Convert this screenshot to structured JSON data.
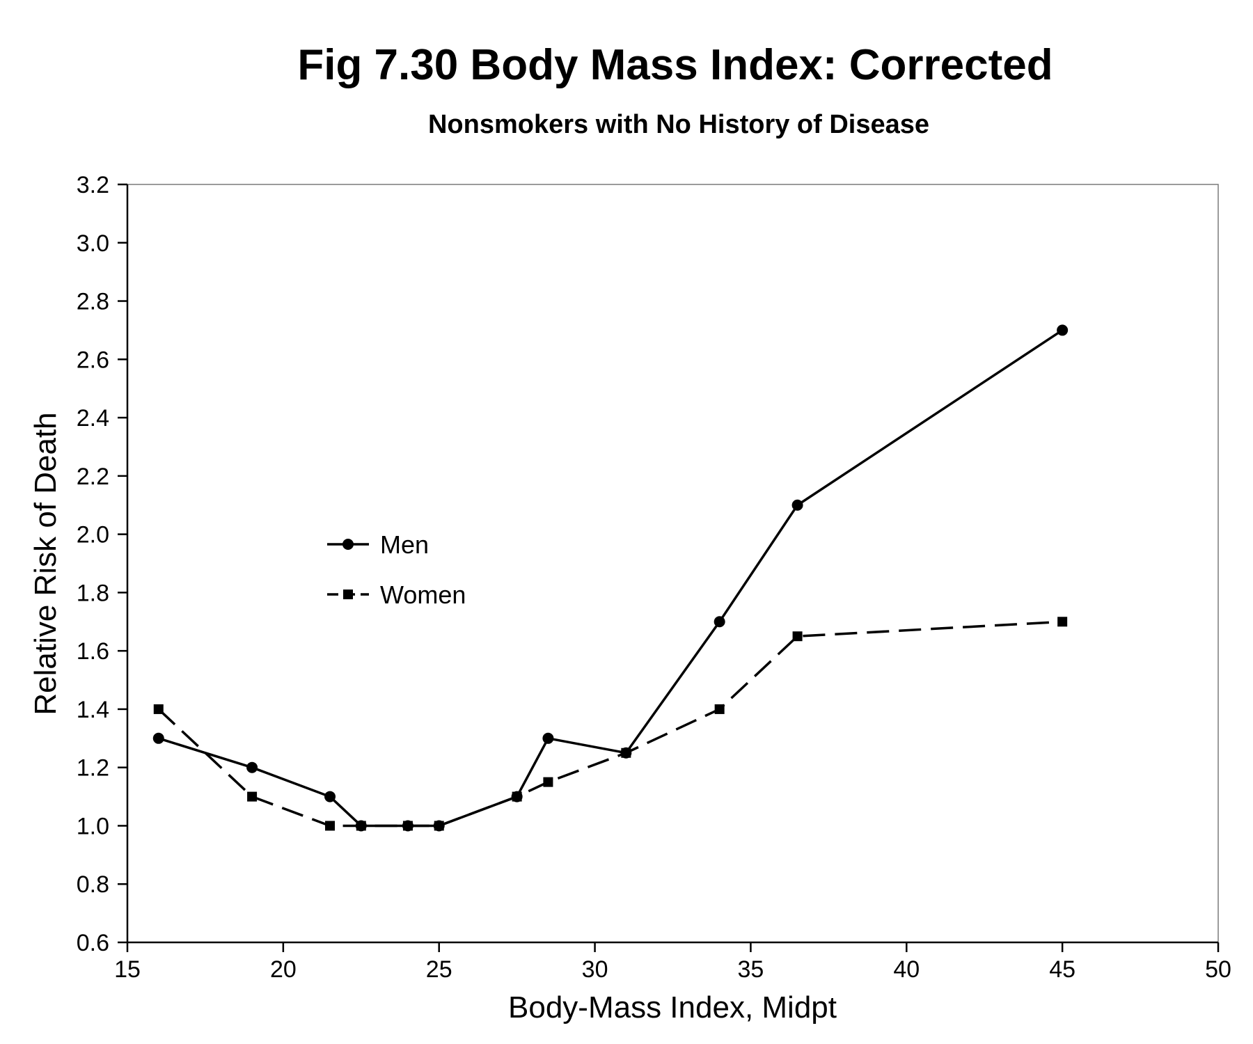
{
  "chart_data": {
    "type": "line",
    "title": "Fig 7.30 Body Mass Index: Corrected",
    "subtitle": "Nonsmokers with No History of Disease",
    "xlabel": "Body-Mass Index, Midpt",
    "ylabel": "Relative Risk of Death",
    "xlim": [
      15,
      50
    ],
    "ylim": [
      0.6,
      3.2
    ],
    "xticks": [
      15,
      20,
      25,
      30,
      35,
      40,
      45,
      50
    ],
    "yticks": [
      0.6,
      0.8,
      1.0,
      1.2,
      1.4,
      1.6,
      1.8,
      2.0,
      2.2,
      2.4,
      2.6,
      2.8,
      3.0,
      3.2
    ],
    "xtick_labels": [
      "15",
      "20",
      "25",
      "30",
      "35",
      "40",
      "45",
      "50"
    ],
    "ytick_labels": [
      "0.6",
      "0.8",
      "1.0",
      "1.2",
      "1.4",
      "1.6",
      "1.8",
      "2.0",
      "2.2",
      "2.4",
      "2.6",
      "2.8",
      "3.0",
      "3.2"
    ],
    "grid": false,
    "legend_position": "center-left",
    "series": [
      {
        "name": "Men",
        "marker": "circle",
        "line_style": "solid",
        "color": "#000000",
        "x": [
          16,
          19,
          21.5,
          22.5,
          24,
          25,
          27.5,
          28.5,
          31,
          34,
          36.5,
          45
        ],
        "y": [
          1.3,
          1.2,
          1.1,
          1.0,
          1.0,
          1.0,
          1.1,
          1.3,
          1.25,
          1.7,
          2.1,
          2.7
        ]
      },
      {
        "name": "Women",
        "marker": "square",
        "line_style": "dashed",
        "color": "#000000",
        "x": [
          16,
          19,
          21.5,
          22.5,
          24,
          25,
          27.5,
          28.5,
          31,
          34,
          36.5,
          45
        ],
        "y": [
          1.4,
          1.1,
          1.0,
          1.0,
          1.0,
          1.0,
          1.1,
          1.15,
          1.25,
          1.4,
          1.65,
          1.7
        ]
      }
    ]
  }
}
